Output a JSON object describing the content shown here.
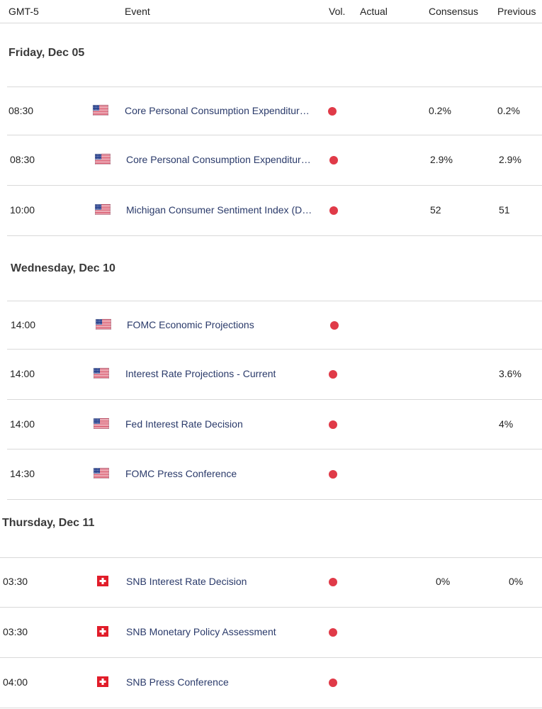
{
  "header": {
    "timezone": "GMT-5",
    "event": "Event",
    "volatility": "Vol.",
    "actual": "Actual",
    "consensus": "Consensus",
    "previous": "Previous"
  },
  "colors": {
    "high_volatility": "#e03a48",
    "event_text": "#2a3a6a"
  },
  "days": [
    {
      "label": "Friday, Dec 05",
      "events": [
        {
          "time": "08:30",
          "flag": "us-flag-icon",
          "name": "Core Personal Consumption Expenditur…",
          "actual": "",
          "consensus": "0.2%",
          "previous": "0.2%"
        },
        {
          "time": "08:30",
          "flag": "us-flag-icon",
          "name": "Core Personal Consumption Expenditur…",
          "actual": "",
          "consensus": "2.9%",
          "previous": "2.9%"
        },
        {
          "time": "10:00",
          "flag": "us-flag-icon",
          "name": "Michigan Consumer Sentiment Index (D…",
          "actual": "",
          "consensus": "52",
          "previous": "51"
        }
      ]
    },
    {
      "label": "Wednesday, Dec 10",
      "events": [
        {
          "time": "14:00",
          "flag": "us-flag-icon",
          "name": "FOMC Economic Projections",
          "actual": "",
          "consensus": "",
          "previous": ""
        },
        {
          "time": "14:00",
          "flag": "us-flag-icon",
          "name": "Interest Rate Projections - Current",
          "actual": "",
          "consensus": "",
          "previous": "3.6%"
        },
        {
          "time": "14:00",
          "flag": "us-flag-icon",
          "name": "Fed Interest Rate Decision",
          "actual": "",
          "consensus": "",
          "previous": "4%"
        },
        {
          "time": "14:30",
          "flag": "us-flag-icon",
          "name": "FOMC Press Conference",
          "actual": "",
          "consensus": "",
          "previous": ""
        }
      ]
    },
    {
      "label": "Thursday, Dec 11",
      "events": [
        {
          "time": "03:30",
          "flag": "ch-flag-icon",
          "name": "SNB Interest Rate Decision",
          "actual": "",
          "consensus": "0%",
          "previous": "0%"
        },
        {
          "time": "03:30",
          "flag": "ch-flag-icon",
          "name": "SNB Monetary Policy Assessment",
          "actual": "",
          "consensus": "",
          "previous": ""
        },
        {
          "time": "04:00",
          "flag": "ch-flag-icon",
          "name": "SNB Press Conference",
          "actual": "",
          "consensus": "",
          "previous": ""
        }
      ]
    }
  ]
}
